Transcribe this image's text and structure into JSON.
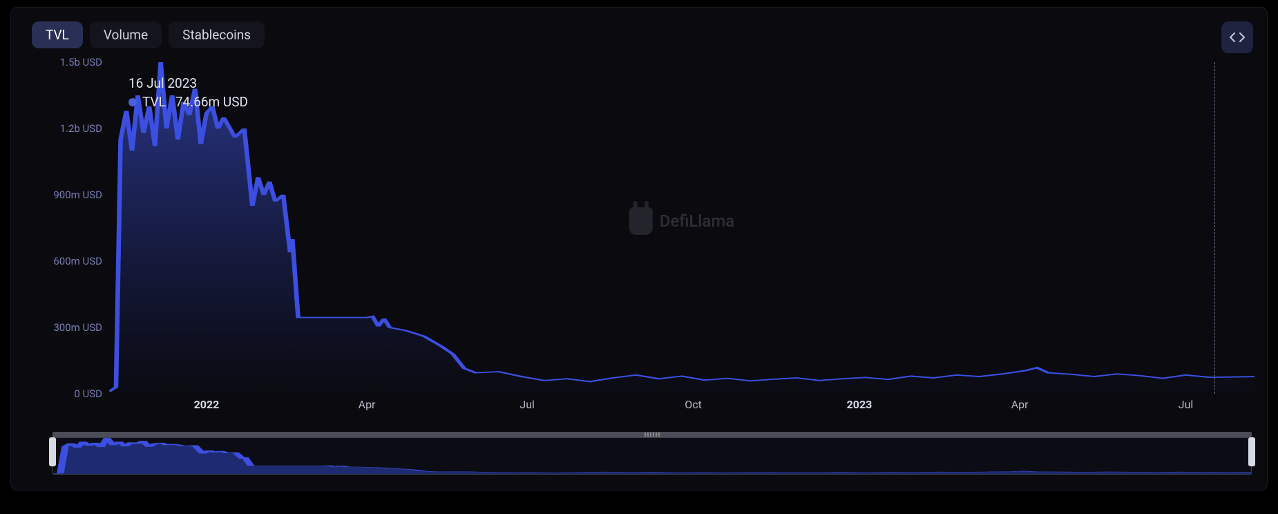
{
  "tabs": [
    {
      "label": "TVL",
      "active": true
    },
    {
      "label": "Volume",
      "active": false
    },
    {
      "label": "Stablecoins",
      "active": false
    }
  ],
  "tooltip": {
    "date": "16 Jul 2023",
    "series_label": "TVL",
    "value": "74.66m USD",
    "dot_color": "#4a5fd8"
  },
  "watermark_text": "DefiLlama",
  "chart": {
    "type": "area",
    "background_color": "#0a0a0f",
    "line_color": "#3c4fe0",
    "line_width": 2,
    "area_gradient_top": "#2a388a",
    "area_gradient_bottom": "rgba(30,40,110,0.02)",
    "hover_line_color": "#6a6e88",
    "y_axis": {
      "min": 0,
      "max": 1500000000,
      "tick_color": "#7a7fb5",
      "tick_fontsize": 15,
      "ticks": [
        {
          "value": 0,
          "label": "0 USD"
        },
        {
          "value": 300000000,
          "label": "300m USD"
        },
        {
          "value": 600000000,
          "label": "600m USD"
        },
        {
          "value": 900000000,
          "label": "900m USD"
        },
        {
          "value": 1200000000,
          "label": "1.2b USD"
        },
        {
          "value": 1500000000,
          "label": "1.5b USD"
        }
      ]
    },
    "x_axis": {
      "tick_color": "#b8bcc8",
      "tick_fontsize": 16,
      "ticks": [
        {
          "t": 0.085,
          "label": "2022",
          "bold": true
        },
        {
          "t": 0.225,
          "label": "Apr",
          "bold": false
        },
        {
          "t": 0.365,
          "label": "Jul",
          "bold": false
        },
        {
          "t": 0.51,
          "label": "Oct",
          "bold": false
        },
        {
          "t": 0.655,
          "label": "2023",
          "bold": true
        },
        {
          "t": 0.795,
          "label": "Apr",
          "bold": false
        },
        {
          "t": 0.94,
          "label": "Jul",
          "bold": false
        }
      ]
    },
    "hover_x": 0.965,
    "series": [
      {
        "t": 0.0,
        "v": 10000000
      },
      {
        "t": 0.006,
        "v": 30000000
      },
      {
        "t": 0.01,
        "v": 1150000000
      },
      {
        "t": 0.015,
        "v": 1280000000
      },
      {
        "t": 0.02,
        "v": 1100000000
      },
      {
        "t": 0.025,
        "v": 1350000000
      },
      {
        "t": 0.03,
        "v": 1180000000
      },
      {
        "t": 0.035,
        "v": 1300000000
      },
      {
        "t": 0.04,
        "v": 1120000000
      },
      {
        "t": 0.045,
        "v": 1500000000
      },
      {
        "t": 0.05,
        "v": 1200000000
      },
      {
        "t": 0.055,
        "v": 1350000000
      },
      {
        "t": 0.06,
        "v": 1150000000
      },
      {
        "t": 0.065,
        "v": 1320000000
      },
      {
        "t": 0.07,
        "v": 1260000000
      },
      {
        "t": 0.075,
        "v": 1380000000
      },
      {
        "t": 0.08,
        "v": 1130000000
      },
      {
        "t": 0.085,
        "v": 1270000000
      },
      {
        "t": 0.09,
        "v": 1300000000
      },
      {
        "t": 0.095,
        "v": 1200000000
      },
      {
        "t": 0.1,
        "v": 1250000000
      },
      {
        "t": 0.11,
        "v": 1160000000
      },
      {
        "t": 0.118,
        "v": 1200000000
      },
      {
        "t": 0.125,
        "v": 850000000
      },
      {
        "t": 0.13,
        "v": 980000000
      },
      {
        "t": 0.135,
        "v": 900000000
      },
      {
        "t": 0.14,
        "v": 960000000
      },
      {
        "t": 0.145,
        "v": 870000000
      },
      {
        "t": 0.152,
        "v": 900000000
      },
      {
        "t": 0.158,
        "v": 640000000
      },
      {
        "t": 0.16,
        "v": 700000000
      },
      {
        "t": 0.165,
        "v": 345000000
      },
      {
        "t": 0.225,
        "v": 345000000
      },
      {
        "t": 0.23,
        "v": 350000000
      },
      {
        "t": 0.235,
        "v": 305000000
      },
      {
        "t": 0.24,
        "v": 340000000
      },
      {
        "t": 0.245,
        "v": 300000000
      },
      {
        "t": 0.26,
        "v": 285000000
      },
      {
        "t": 0.275,
        "v": 260000000
      },
      {
        "t": 0.29,
        "v": 215000000
      },
      {
        "t": 0.3,
        "v": 180000000
      },
      {
        "t": 0.31,
        "v": 115000000
      },
      {
        "t": 0.32,
        "v": 95000000
      },
      {
        "t": 0.34,
        "v": 100000000
      },
      {
        "t": 0.36,
        "v": 78000000
      },
      {
        "t": 0.38,
        "v": 60000000
      },
      {
        "t": 0.4,
        "v": 68000000
      },
      {
        "t": 0.42,
        "v": 55000000
      },
      {
        "t": 0.44,
        "v": 72000000
      },
      {
        "t": 0.46,
        "v": 85000000
      },
      {
        "t": 0.48,
        "v": 68000000
      },
      {
        "t": 0.5,
        "v": 80000000
      },
      {
        "t": 0.52,
        "v": 62000000
      },
      {
        "t": 0.54,
        "v": 70000000
      },
      {
        "t": 0.56,
        "v": 58000000
      },
      {
        "t": 0.58,
        "v": 66000000
      },
      {
        "t": 0.6,
        "v": 72000000
      },
      {
        "t": 0.62,
        "v": 60000000
      },
      {
        "t": 0.64,
        "v": 68000000
      },
      {
        "t": 0.66,
        "v": 74000000
      },
      {
        "t": 0.68,
        "v": 65000000
      },
      {
        "t": 0.7,
        "v": 80000000
      },
      {
        "t": 0.72,
        "v": 72000000
      },
      {
        "t": 0.74,
        "v": 85000000
      },
      {
        "t": 0.76,
        "v": 78000000
      },
      {
        "t": 0.78,
        "v": 90000000
      },
      {
        "t": 0.8,
        "v": 105000000
      },
      {
        "t": 0.81,
        "v": 118000000
      },
      {
        "t": 0.82,
        "v": 95000000
      },
      {
        "t": 0.84,
        "v": 88000000
      },
      {
        "t": 0.86,
        "v": 78000000
      },
      {
        "t": 0.88,
        "v": 90000000
      },
      {
        "t": 0.9,
        "v": 82000000
      },
      {
        "t": 0.92,
        "v": 70000000
      },
      {
        "t": 0.94,
        "v": 85000000
      },
      {
        "t": 0.96,
        "v": 75000000
      },
      {
        "t": 0.965,
        "v": 74660000
      },
      {
        "t": 1.0,
        "v": 78000000
      }
    ]
  },
  "brush": {
    "bar_color": "#4a4d58",
    "handle_color": "#d8dbe6",
    "border_color": "#3e4050"
  }
}
